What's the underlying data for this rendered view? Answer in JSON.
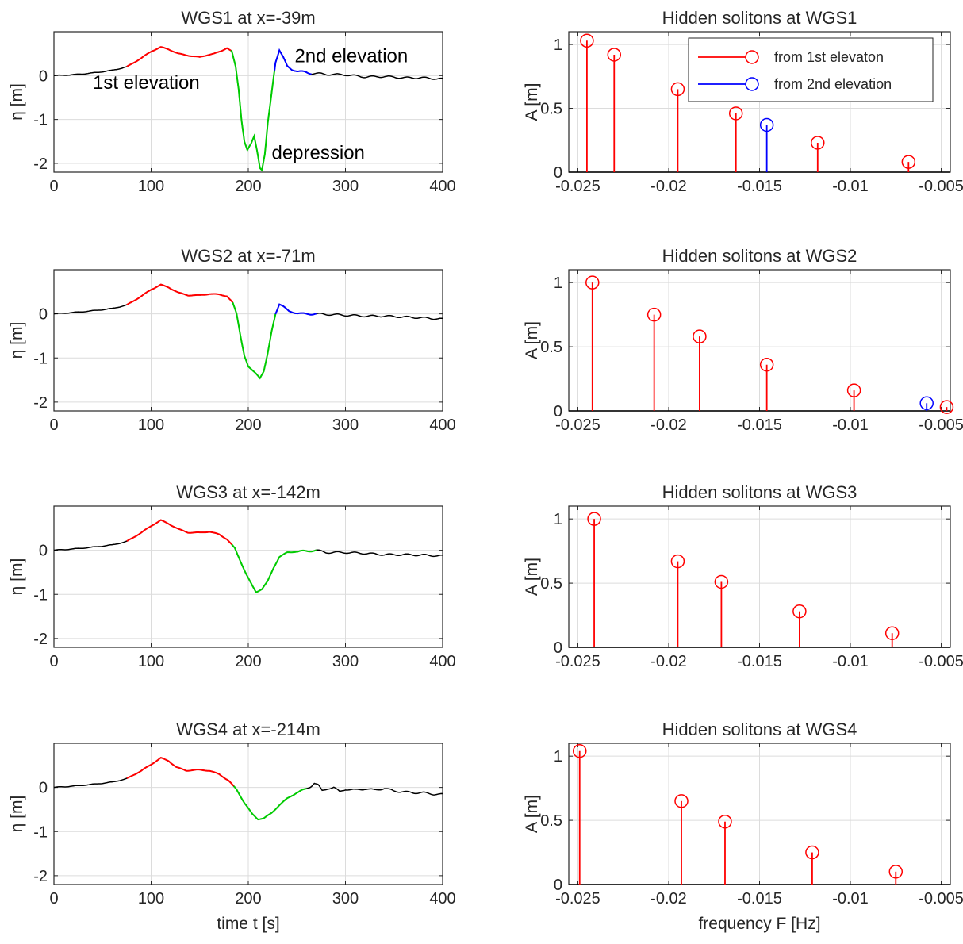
{
  "colors": {
    "first_elevation": "#ff0000",
    "depression": "#00cc00",
    "second_elevation": "#0000ff",
    "background_signal": "#000000",
    "stem_first": "#ff0000",
    "stem_second": "#0000ff",
    "axes": "#262626",
    "grid": "#dcdcdc"
  },
  "chart_data": [
    {
      "type": "line",
      "title": "WGS1 at x=-39m",
      "xlabel": "",
      "ylabel": "η [m]",
      "xlim": [
        0,
        400
      ],
      "ylim": [
        -2.2,
        1.0
      ],
      "xticks": [
        0,
        100,
        200,
        300,
        400
      ],
      "yticks": [
        -2,
        -1,
        0
      ],
      "xtick_labels": [
        "0",
        "100",
        "200",
        "300",
        "400"
      ],
      "ytick_labels": [
        "-2",
        "-1",
        "0"
      ],
      "grid": true,
      "points": [
        [
          0,
          0
        ],
        [
          20,
          0.02
        ],
        [
          40,
          0.06
        ],
        [
          60,
          0.12
        ],
        [
          75,
          0.2
        ],
        [
          90,
          0.4
        ],
        [
          100,
          0.55
        ],
        [
          110,
          0.65
        ],
        [
          118,
          0.6
        ],
        [
          128,
          0.5
        ],
        [
          140,
          0.45
        ],
        [
          150,
          0.42
        ],
        [
          158,
          0.47
        ],
        [
          165,
          0.5
        ],
        [
          172,
          0.56
        ],
        [
          178,
          0.63
        ],
        [
          183,
          0.55
        ],
        [
          187,
          0.2
        ],
        [
          190,
          -0.3
        ],
        [
          193,
          -1.0
        ],
        [
          196,
          -1.5
        ],
        [
          199,
          -1.7
        ],
        [
          203,
          -1.55
        ],
        [
          206,
          -1.38
        ],
        [
          209,
          -1.7
        ],
        [
          212,
          -2.1
        ],
        [
          214,
          -2.15
        ],
        [
          217,
          -1.8
        ],
        [
          220,
          -1.1
        ],
        [
          224,
          -0.4
        ],
        [
          228,
          0.3
        ],
        [
          232,
          0.58
        ],
        [
          236,
          0.42
        ],
        [
          240,
          0.22
        ],
        [
          245,
          0.13
        ],
        [
          250,
          0.1
        ],
        [
          258,
          0.08
        ],
        [
          265,
          0.05
        ],
        [
          270,
          0.05
        ],
        [
          280,
          0.03
        ],
        [
          300,
          0.02
        ],
        [
          320,
          -0.03
        ],
        [
          340,
          -0.02
        ],
        [
          360,
          -0.05
        ],
        [
          380,
          -0.05
        ],
        [
          400,
          -0.08
        ]
      ],
      "segments": [
        {
          "name": "1st elevation",
          "color": "#ff0000",
          "x_range": [
            75,
            182
          ]
        },
        {
          "name": "depression",
          "color": "#00cc00",
          "x_range": [
            182,
            227
          ]
        },
        {
          "name": "2nd elevation",
          "color": "#0000ff",
          "x_range": [
            227,
            265
          ]
        }
      ],
      "annotations": [
        {
          "text": "1st elevation",
          "x": 95,
          "y": -0.3
        },
        {
          "text": "2nd elevation",
          "x": 306,
          "y": 0.3
        },
        {
          "text": "depression",
          "x": 272,
          "y": -1.9
        }
      ]
    },
    {
      "type": "stem",
      "title": "Hidden solitons at WGS1",
      "xlabel": "",
      "ylabel": "A [m]",
      "xlim": [
        -0.0255,
        -0.0045
      ],
      "ylim": [
        0,
        1.1
      ],
      "xticks": [
        -0.025,
        -0.02,
        -0.015,
        -0.01,
        -0.005
      ],
      "yticks": [
        0,
        0.5,
        1
      ],
      "xtick_labels": [
        "-0.025",
        "-0.02",
        "-0.015",
        "-0.01",
        "-0.005"
      ],
      "ytick_labels": [
        "0",
        "0.5",
        "1"
      ],
      "grid": true,
      "series": [
        {
          "name": "from 1st elevaton",
          "color": "#ff0000",
          "x": [
            -0.0245,
            -0.023,
            -0.0195,
            -0.0163,
            -0.0118,
            -0.0068
          ],
          "y": [
            1.03,
            0.92,
            0.65,
            0.46,
            0.23,
            0.08
          ]
        },
        {
          "name": "from 2nd elevation",
          "color": "#0000ff",
          "x": [
            -0.0146
          ],
          "y": [
            0.37
          ]
        }
      ],
      "legend": {
        "position": "top-right"
      }
    },
    {
      "type": "line",
      "title": "WGS2 at x=-71m",
      "xlabel": "",
      "ylabel": "η [m]",
      "xlim": [
        0,
        400
      ],
      "ylim": [
        -2.2,
        1.0
      ],
      "xticks": [
        0,
        100,
        200,
        300,
        400
      ],
      "yticks": [
        -2,
        -1,
        0
      ],
      "xtick_labels": [
        "0",
        "100",
        "200",
        "300",
        "400"
      ],
      "ytick_labels": [
        "-2",
        "-1",
        "0"
      ],
      "grid": true,
      "points": [
        [
          0,
          0
        ],
        [
          20,
          0.03
        ],
        [
          40,
          0.07
        ],
        [
          60,
          0.12
        ],
        [
          75,
          0.2
        ],
        [
          90,
          0.4
        ],
        [
          100,
          0.55
        ],
        [
          110,
          0.66
        ],
        [
          118,
          0.6
        ],
        [
          128,
          0.48
        ],
        [
          138,
          0.42
        ],
        [
          150,
          0.42
        ],
        [
          160,
          0.45
        ],
        [
          170,
          0.44
        ],
        [
          178,
          0.4
        ],
        [
          184,
          0.25
        ],
        [
          188,
          0.0
        ],
        [
          192,
          -0.5
        ],
        [
          196,
          -0.95
        ],
        [
          200,
          -1.2
        ],
        [
          204,
          -1.28
        ],
        [
          208,
          -1.35
        ],
        [
          212,
          -1.45
        ],
        [
          216,
          -1.3
        ],
        [
          220,
          -0.9
        ],
        [
          224,
          -0.4
        ],
        [
          228,
          0.0
        ],
        [
          232,
          0.22
        ],
        [
          236,
          0.17
        ],
        [
          242,
          0.06
        ],
        [
          248,
          0.02
        ],
        [
          255,
          0.0
        ],
        [
          262,
          0.0
        ],
        [
          270,
          0.0
        ],
        [
          280,
          -0.01
        ],
        [
          300,
          -0.03
        ],
        [
          320,
          -0.05
        ],
        [
          340,
          -0.05
        ],
        [
          360,
          -0.07
        ],
        [
          380,
          -0.09
        ],
        [
          400,
          -0.12
        ]
      ],
      "segments": [
        {
          "name": "1st elevation",
          "color": "#ff0000",
          "x_range": [
            75,
            184
          ]
        },
        {
          "name": "depression",
          "color": "#00cc00",
          "x_range": [
            184,
            228
          ]
        },
        {
          "name": "2nd elevation",
          "color": "#0000ff",
          "x_range": [
            228,
            270
          ]
        }
      ]
    },
    {
      "type": "stem",
      "title": "Hidden solitons at WGS2",
      "xlabel": "",
      "ylabel": "A [m]",
      "xlim": [
        -0.0255,
        -0.0045
      ],
      "ylim": [
        0,
        1.1
      ],
      "xticks": [
        -0.025,
        -0.02,
        -0.015,
        -0.01,
        -0.005
      ],
      "yticks": [
        0,
        0.5,
        1
      ],
      "xtick_labels": [
        "-0.025",
        "-0.02",
        "-0.015",
        "-0.01",
        "-0.005"
      ],
      "ytick_labels": [
        "0",
        "0.5",
        "1"
      ],
      "grid": true,
      "series": [
        {
          "name": "from 1st elevaton",
          "color": "#ff0000",
          "x": [
            -0.0242,
            -0.0208,
            -0.0183,
            -0.0146,
            -0.0098,
            -0.0047
          ],
          "y": [
            1.0,
            0.75,
            0.58,
            0.36,
            0.16,
            0.03
          ]
        },
        {
          "name": "from 2nd elevation",
          "color": "#0000ff",
          "x": [
            -0.0058
          ],
          "y": [
            0.06
          ]
        }
      ]
    },
    {
      "type": "line",
      "title": "WGS3 at x=-142m",
      "xlabel": "",
      "ylabel": "η [m]",
      "xlim": [
        0,
        400
      ],
      "ylim": [
        -2.2,
        1.0
      ],
      "xticks": [
        0,
        100,
        200,
        300,
        400
      ],
      "yticks": [
        -2,
        -1,
        0
      ],
      "xtick_labels": [
        "0",
        "100",
        "200",
        "300",
        "400"
      ],
      "ytick_labels": [
        "-2",
        "-1",
        "0"
      ],
      "grid": true,
      "points": [
        [
          0,
          0
        ],
        [
          20,
          0.03
        ],
        [
          40,
          0.07
        ],
        [
          60,
          0.12
        ],
        [
          75,
          0.2
        ],
        [
          90,
          0.4
        ],
        [
          100,
          0.55
        ],
        [
          110,
          0.68
        ],
        [
          118,
          0.6
        ],
        [
          128,
          0.48
        ],
        [
          138,
          0.4
        ],
        [
          150,
          0.4
        ],
        [
          160,
          0.42
        ],
        [
          170,
          0.36
        ],
        [
          178,
          0.25
        ],
        [
          186,
          0.05
        ],
        [
          192,
          -0.25
        ],
        [
          198,
          -0.55
        ],
        [
          204,
          -0.8
        ],
        [
          208,
          -0.95
        ],
        [
          214,
          -0.88
        ],
        [
          220,
          -0.7
        ],
        [
          226,
          -0.4
        ],
        [
          232,
          -0.15
        ],
        [
          240,
          -0.05
        ],
        [
          250,
          -0.03
        ],
        [
          260,
          -0.02
        ],
        [
          270,
          0.0
        ],
        [
          280,
          -0.05
        ],
        [
          300,
          -0.05
        ],
        [
          320,
          -0.07
        ],
        [
          340,
          -0.1
        ],
        [
          360,
          -0.1
        ],
        [
          380,
          -0.11
        ],
        [
          400,
          -0.13
        ]
      ],
      "segments": [
        {
          "name": "1st elevation",
          "color": "#ff0000",
          "x_range": [
            75,
            183
          ]
        },
        {
          "name": "depression",
          "color": "#00cc00",
          "x_range": [
            183,
            270
          ]
        }
      ]
    },
    {
      "type": "stem",
      "title": "Hidden solitons at WGS3",
      "xlabel": "",
      "ylabel": "A [m]",
      "xlim": [
        -0.0255,
        -0.0045
      ],
      "ylim": [
        0,
        1.1
      ],
      "xticks": [
        -0.025,
        -0.02,
        -0.015,
        -0.01,
        -0.005
      ],
      "yticks": [
        0,
        0.5,
        1
      ],
      "xtick_labels": [
        "-0.025",
        "-0.02",
        "-0.015",
        "-0.01",
        "-0.005"
      ],
      "ytick_labels": [
        "0",
        "0.5",
        "1"
      ],
      "grid": true,
      "series": [
        {
          "name": "from 1st elevaton",
          "color": "#ff0000",
          "x": [
            -0.0241,
            -0.0195,
            -0.0171,
            -0.0128,
            -0.0077
          ],
          "y": [
            1.0,
            0.67,
            0.51,
            0.28,
            0.11
          ]
        }
      ]
    },
    {
      "type": "line",
      "title": "WGS4 at x=-214m",
      "xlabel": "time t [s]",
      "ylabel": "η [m]",
      "xlim": [
        0,
        400
      ],
      "ylim": [
        -2.2,
        1.0
      ],
      "xticks": [
        0,
        100,
        200,
        300,
        400
      ],
      "yticks": [
        -2,
        -1,
        0
      ],
      "xtick_labels": [
        "0",
        "100",
        "200",
        "300",
        "400"
      ],
      "ytick_labels": [
        "-2",
        "-1",
        "0"
      ],
      "grid": true,
      "points": [
        [
          0,
          0
        ],
        [
          20,
          0.03
        ],
        [
          40,
          0.07
        ],
        [
          60,
          0.12
        ],
        [
          75,
          0.2
        ],
        [
          90,
          0.38
        ],
        [
          100,
          0.52
        ],
        [
          110,
          0.67
        ],
        [
          118,
          0.6
        ],
        [
          126,
          0.46
        ],
        [
          136,
          0.38
        ],
        [
          148,
          0.4
        ],
        [
          160,
          0.38
        ],
        [
          170,
          0.3
        ],
        [
          180,
          0.15
        ],
        [
          188,
          -0.05
        ],
        [
          196,
          -0.35
        ],
        [
          204,
          -0.6
        ],
        [
          210,
          -0.72
        ],
        [
          216,
          -0.7
        ],
        [
          224,
          -0.58
        ],
        [
          232,
          -0.4
        ],
        [
          240,
          -0.25
        ],
        [
          250,
          -0.12
        ],
        [
          258,
          -0.05
        ],
        [
          264,
          0.02
        ],
        [
          268,
          0.1
        ],
        [
          272,
          0.05
        ],
        [
          276,
          -0.08
        ],
        [
          282,
          -0.02
        ],
        [
          288,
          0.0
        ],
        [
          294,
          -0.1
        ],
        [
          300,
          -0.04
        ],
        [
          310,
          -0.06
        ],
        [
          320,
          -0.03
        ],
        [
          330,
          -0.06
        ],
        [
          340,
          -0.02
        ],
        [
          350,
          -0.08
        ],
        [
          360,
          -0.1
        ],
        [
          370,
          -0.12
        ],
        [
          380,
          -0.12
        ],
        [
          390,
          -0.15
        ],
        [
          400,
          -0.16
        ]
      ],
      "segments": [
        {
          "name": "1st elevation",
          "color": "#ff0000",
          "x_range": [
            75,
            185
          ]
        },
        {
          "name": "depression",
          "color": "#00cc00",
          "x_range": [
            185,
            260
          ]
        }
      ]
    },
    {
      "type": "stem",
      "title": "Hidden solitons at WGS4",
      "xlabel": "frequency F [Hz]",
      "ylabel": "A [m]",
      "xlim": [
        -0.0255,
        -0.0045
      ],
      "ylim": [
        0,
        1.1
      ],
      "xticks": [
        -0.025,
        -0.02,
        -0.015,
        -0.01,
        -0.005
      ],
      "yticks": [
        0,
        0.5,
        1
      ],
      "xtick_labels": [
        "-0.025",
        "-0.02",
        "-0.015",
        "-0.01",
        "-0.005"
      ],
      "ytick_labels": [
        "0",
        "0.5",
        "1"
      ],
      "grid": true,
      "series": [
        {
          "name": "from 1st elevaton",
          "color": "#ff0000",
          "x": [
            -0.0249,
            -0.0193,
            -0.0169,
            -0.0121,
            -0.0075
          ],
          "y": [
            1.04,
            0.65,
            0.49,
            0.25,
            0.1
          ]
        }
      ]
    }
  ]
}
